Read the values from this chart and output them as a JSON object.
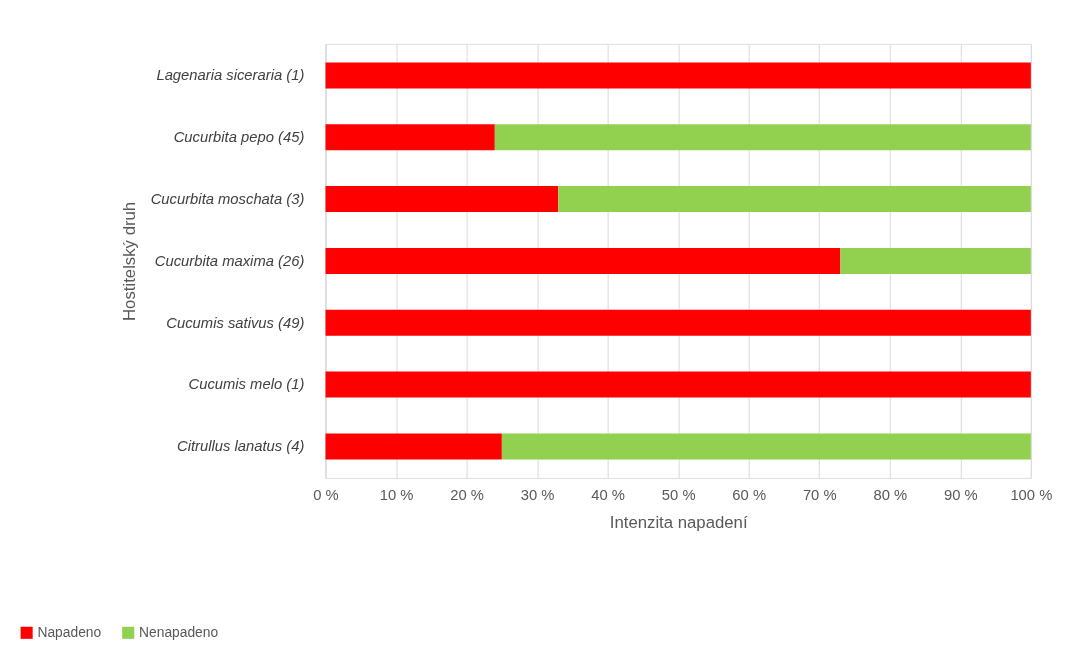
{
  "chart_data": {
    "type": "bar",
    "orientation": "horizontal",
    "stacked": true,
    "xlabel": "Intenzita napadení",
    "ylabel": "Hostitelský druh",
    "categories": [
      "Lagenaria siceraria (1)",
      "Cucurbita pepo (45)",
      "Cucurbita moschata (3)",
      "Cucurbita maxima (26)",
      "Cucumis sativus (49)",
      "Cucumis melo (1)",
      "Citrullus lanatus (4)"
    ],
    "series": [
      {
        "name": "Napadeno",
        "color": "#ff0000",
        "values": [
          100,
          24,
          33,
          73,
          100,
          100,
          25
        ]
      },
      {
        "name": "Nenapadeno",
        "color": "#92d050",
        "values": [
          0,
          76,
          67,
          27,
          0,
          0,
          75
        ]
      }
    ],
    "xlim": [
      0,
      100
    ],
    "xticks": [
      {
        "value": 0,
        "label": "0 %"
      },
      {
        "value": 10,
        "label": "10 %"
      },
      {
        "value": 20,
        "label": "20 %"
      },
      {
        "value": 30,
        "label": "30 %"
      },
      {
        "value": 40,
        "label": "40 %"
      },
      {
        "value": 50,
        "label": "50 %"
      },
      {
        "value": 60,
        "label": "60 %"
      },
      {
        "value": 70,
        "label": "70 %"
      },
      {
        "value": 80,
        "label": "80 %"
      },
      {
        "value": 90,
        "label": "90 %"
      },
      {
        "value": 100,
        "label": "100 %"
      }
    ],
    "grid": "x",
    "legend": "bottom left"
  }
}
